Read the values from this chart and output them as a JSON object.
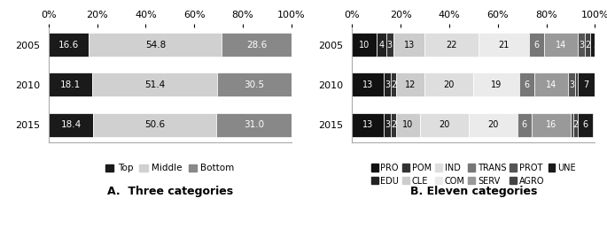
{
  "chart_A": {
    "years": [
      "2015",
      "2010",
      "2005"
    ],
    "categories": [
      "Top",
      "Middle",
      "Bottom"
    ],
    "colors": [
      "#1a1a1a",
      "#d0d0d0",
      "#888888"
    ],
    "values": [
      [
        18.4,
        50.6,
        31.0
      ],
      [
        18.1,
        51.4,
        30.5
      ],
      [
        16.6,
        54.8,
        28.6
      ]
    ],
    "title": "A.  Three categories"
  },
  "chart_B": {
    "years": [
      "2015",
      "2010",
      "2005"
    ],
    "categories": [
      "PRO",
      "EDU",
      "POM",
      "CLE",
      "IND",
      "COM",
      "TRANS",
      "SERV",
      "PROT",
      "AGRO",
      "UNE"
    ],
    "colors": [
      "#111111",
      "#222222",
      "#333333",
      "#cccccc",
      "#dedede",
      "#ebebeb",
      "#777777",
      "#999999",
      "#555555",
      "#444444",
      "#1a1a1a"
    ],
    "values": [
      [
        13,
        3,
        2,
        10,
        20,
        20,
        6,
        16,
        1,
        2,
        6
      ],
      [
        13,
        3,
        2,
        12,
        20,
        19,
        6,
        14,
        3,
        1,
        7
      ],
      [
        10,
        4,
        3,
        13,
        22,
        21,
        6,
        14,
        3,
        2,
        5
      ]
    ],
    "text_colors": [
      "white",
      "white",
      "white",
      "black",
      "black",
      "black",
      "white",
      "white",
      "white",
      "white",
      "white"
    ],
    "title": "B. Eleven categories"
  },
  "background_color": "#ffffff",
  "font_size_labels": 7.5,
  "font_size_title": 9,
  "font_size_ticks": 8,
  "font_size_legend": 7.5
}
